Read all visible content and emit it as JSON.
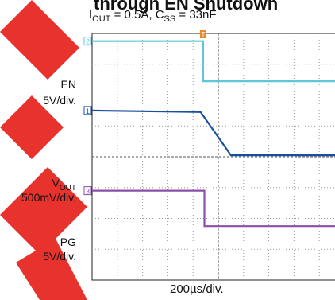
{
  "chart_data": {
    "type": "line",
    "title": "through EN Shutdown",
    "subtitle_parts": {
      "iout_main": "I",
      "iout_sub": "OUT",
      "iout_val": " = 0.5A, C",
      "css_sub": "SS",
      "css_val": " = 33nF"
    },
    "xlabel": "200µs/div.",
    "grid": "10x8 divisions, dotted",
    "x_div_time_us": 200,
    "trigger_marker": "T",
    "series": [
      {
        "name_main": "EN",
        "name_sub": "",
        "scale": "5V/div.",
        "channel": "2",
        "color": "#5fc8d8",
        "points_div": [
          [
            0,
            0.25
          ],
          [
            4.4,
            0.25
          ],
          [
            4.4,
            1.55
          ],
          [
            10,
            1.55
          ]
        ]
      },
      {
        "name_main": "V",
        "name_sub": "OUT",
        "scale": "500mV/div.",
        "channel": "1",
        "color": "#1a4fa0",
        "points_div": [
          [
            0,
            2.5
          ],
          [
            4.3,
            2.55
          ],
          [
            4.9,
            3.25
          ],
          [
            5.5,
            3.95
          ],
          [
            10,
            3.95
          ]
        ]
      },
      {
        "name_main": "PG",
        "name_sub": "",
        "scale": "5V/div.",
        "channel": "3",
        "color": "#8a4fa8",
        "points_div": [
          [
            0,
            5.1
          ],
          [
            4.45,
            5.1
          ],
          [
            4.45,
            6.25
          ],
          [
            10,
            6.25
          ]
        ]
      }
    ]
  },
  "watermark_color": "#e8322d"
}
